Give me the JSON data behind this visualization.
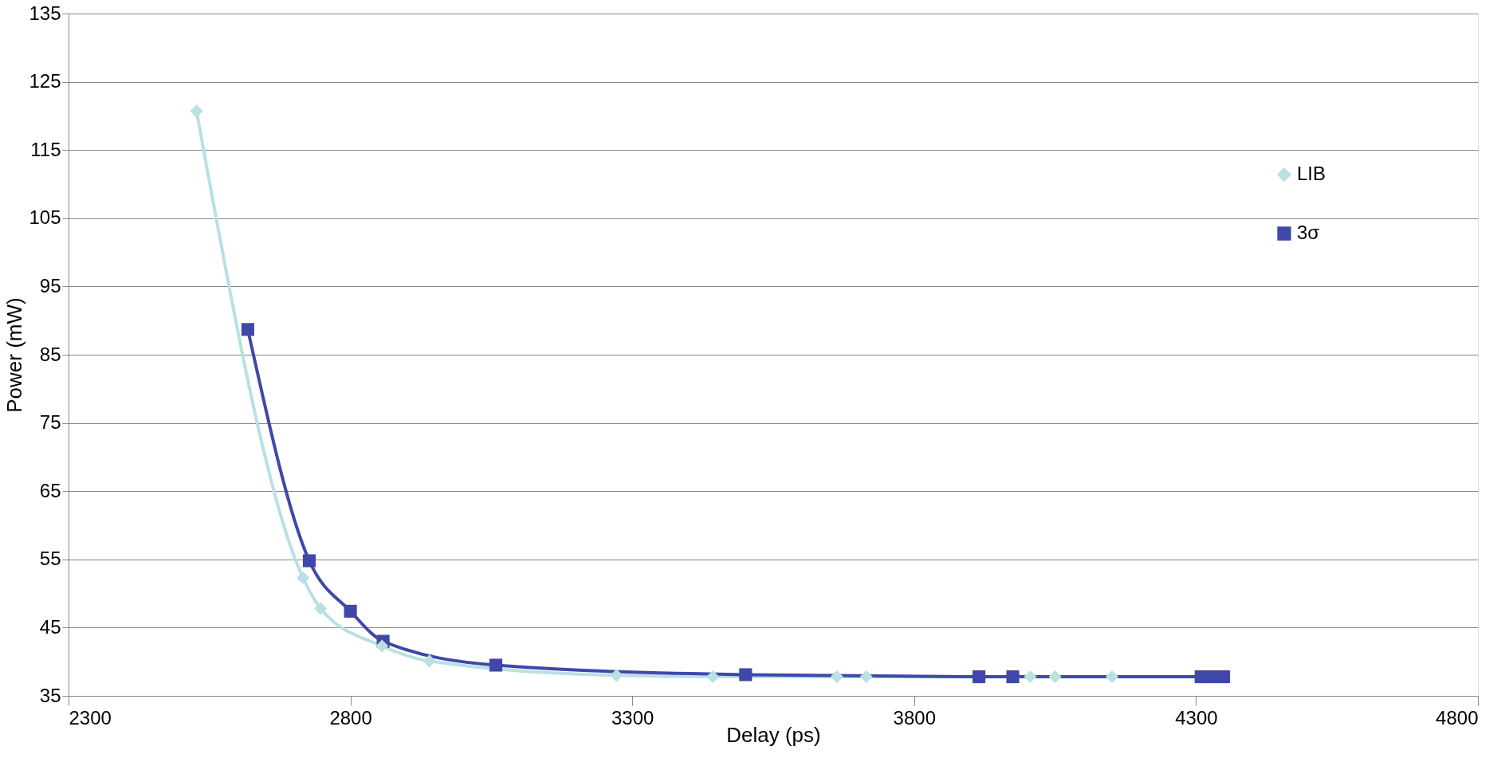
{
  "chart_data": {
    "type": "line",
    "xlabel": "Delay (ps)",
    "ylabel": "Power  (mW)",
    "xlim": [
      2300,
      4800
    ],
    "xticks": [
      2300,
      2800,
      3300,
      3800,
      4300,
      4800
    ],
    "ylim": [
      35,
      135
    ],
    "yticks": [
      35,
      45,
      55,
      65,
      75,
      85,
      95,
      105,
      115,
      125,
      135
    ],
    "grid": "y",
    "legend": "top right",
    "series": [
      {
        "name": "LIB",
        "color": "#b9e0e2",
        "marker": "diamond",
        "x": [
          2527,
          2716,
          2747,
          2856,
          2940,
          3272,
          3443,
          3663,
          3715,
          4006,
          4050,
          4151
        ],
        "values": [
          120.7,
          52.3,
          47.8,
          42.3,
          40.1,
          38.0,
          37.8,
          37.8,
          37.8,
          37.8,
          37.8,
          37.8
        ]
      },
      {
        "name": "3σ",
        "color": "#3f48a8",
        "marker": "square",
        "x": [
          2618,
          2727,
          2800,
          2858,
          3058,
          3501,
          3915,
          3975,
          4309,
          4328,
          4349
        ],
        "values": [
          88.7,
          54.8,
          47.4,
          43.0,
          39.5,
          38.1,
          37.8,
          37.8,
          37.8,
          37.8,
          37.8
        ]
      }
    ]
  }
}
